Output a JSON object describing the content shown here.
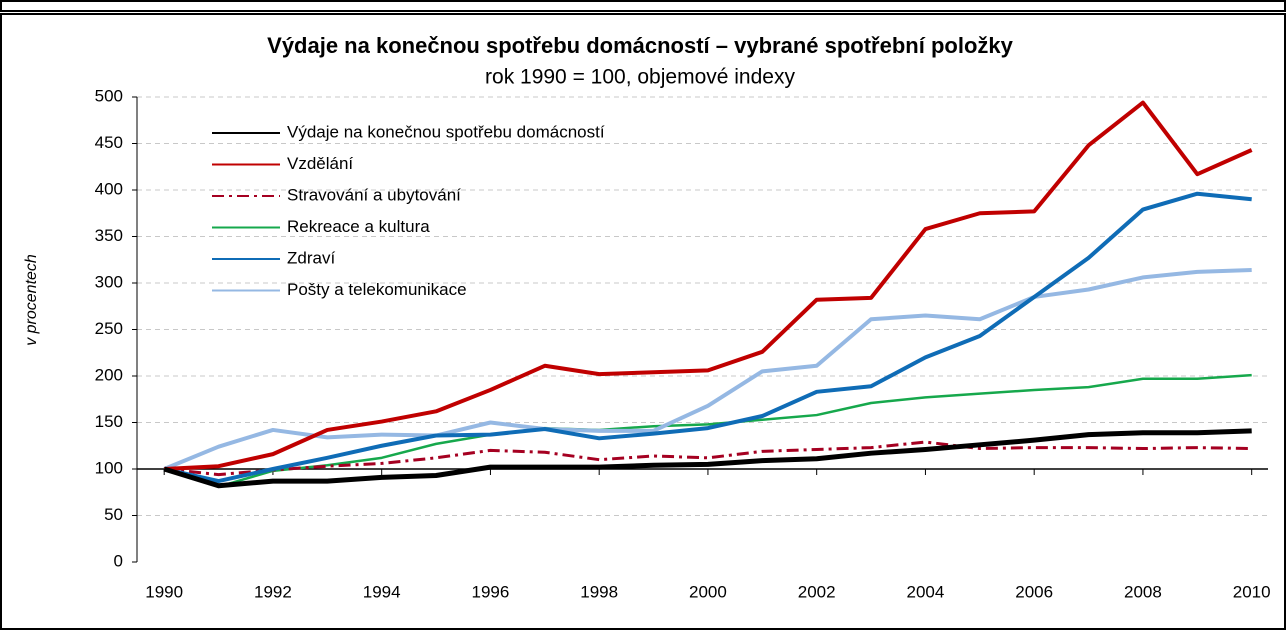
{
  "chart_data": {
    "type": "line",
    "title": "Výdaje na konečnou spotřebu domácností – vybrané spotřební položky",
    "subtitle": "rok 1990 = 100, objemové indexy",
    "y_label": "v procentech",
    "x": [
      1990,
      1991,
      1992,
      1993,
      1994,
      1995,
      1996,
      1997,
      1998,
      1999,
      2000,
      2001,
      2002,
      2003,
      2004,
      2005,
      2006,
      2007,
      2008,
      2009,
      2010
    ],
    "xlim": [
      1989.5,
      2010.3
    ],
    "xticks": [
      1990,
      1992,
      1994,
      1996,
      1998,
      2000,
      2002,
      2004,
      2006,
      2008,
      2010
    ],
    "ylim": [
      0,
      500
    ],
    "yticks": [
      0,
      50,
      100,
      150,
      200,
      250,
      300,
      350,
      400,
      450,
      500
    ],
    "x_axis_at": 100,
    "grid": true,
    "legend": "upper left",
    "series": [
      {
        "name": "Výdaje na konečnou spotřebu domácností",
        "color": "#000000",
        "line_style": "solid",
        "values": [
          100,
          82,
          87,
          87,
          91,
          93,
          102,
          102,
          102,
          104,
          105,
          109,
          111,
          117,
          121,
          126,
          131,
          137,
          139,
          139,
          141
        ]
      },
      {
        "name": "Vzdělání",
        "color": "#c00000",
        "line_style": "solid",
        "values": [
          100,
          103,
          116,
          142,
          151,
          162,
          185,
          211,
          202,
          204,
          206,
          226,
          282,
          284,
          358,
          375,
          377,
          448,
          494,
          417,
          443
        ]
      },
      {
        "name": "Stravování a ubytování",
        "color": "#a50021",
        "line_style": "dash-dot",
        "values": [
          100,
          94,
          99,
          103,
          106,
          112,
          120,
          118,
          110,
          114,
          112,
          119,
          121,
          123,
          129,
          122,
          123,
          123,
          122,
          123,
          122
        ]
      },
      {
        "name": "Rekreace a kultura",
        "color": "#16a84c",
        "line_style": "solid",
        "values": [
          100,
          81,
          98,
          104,
          112,
          127,
          137,
          144,
          142,
          146,
          148,
          153,
          158,
          171,
          177,
          181,
          185,
          188,
          197,
          197,
          201
        ]
      },
      {
        "name": "Zdraví",
        "color": "#0f6cb6",
        "line_style": "solid",
        "values": [
          100,
          87,
          100,
          112,
          125,
          136,
          137,
          143,
          133,
          138,
          144,
          157,
          183,
          189,
          220,
          243,
          285,
          327,
          379,
          396,
          390
        ]
      },
      {
        "name": "Pošty a telekomunikace",
        "color": "#95b8e3",
        "line_style": "solid",
        "values": [
          100,
          124,
          142,
          134,
          137,
          136,
          150,
          143,
          141,
          141,
          168,
          205,
          211,
          261,
          265,
          261,
          285,
          293,
          306,
          312,
          314
        ]
      }
    ]
  }
}
